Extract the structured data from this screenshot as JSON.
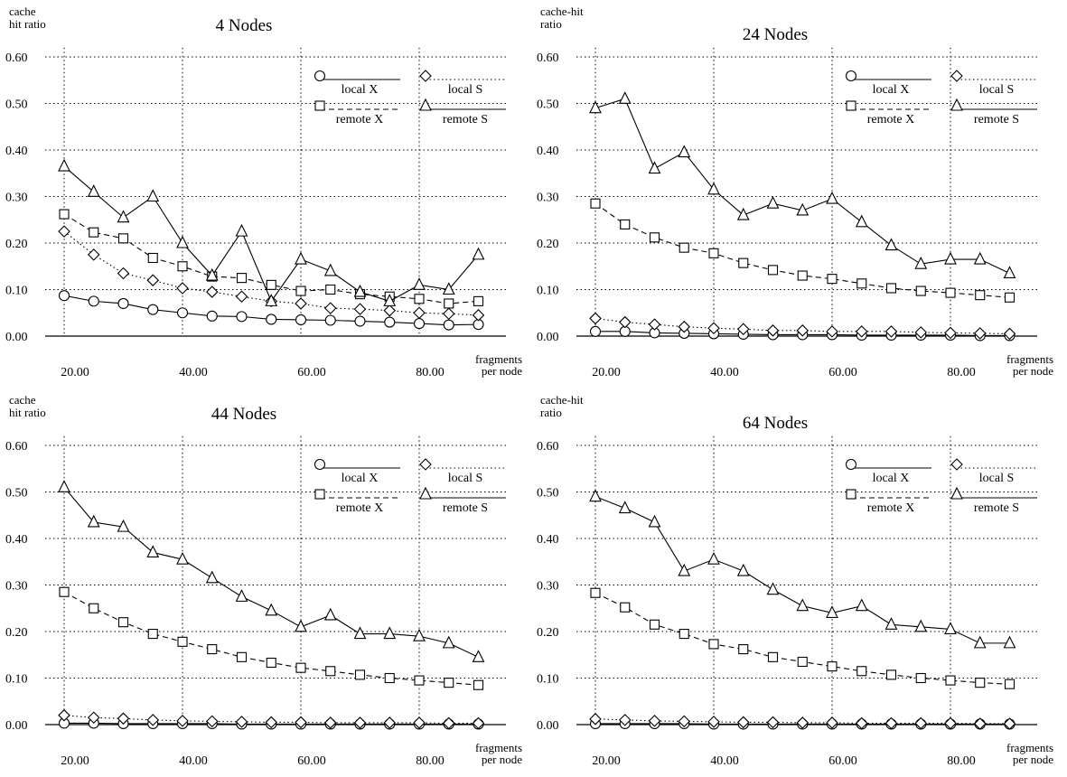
{
  "x_ticks": [
    "20.00",
    "40.00",
    "60.00",
    "80.00"
  ],
  "y_ticks": [
    "0.00",
    "0.10",
    "0.20",
    "0.30",
    "0.40",
    "0.50",
    "0.60"
  ],
  "legend": [
    "local X",
    "local S",
    "remote X",
    "remote S"
  ],
  "chart_data": [
    {
      "type": "line",
      "title": "4 Nodes",
      "ylabel": "cache hit ratio",
      "xlabel": "fragments per node",
      "ylim": [
        0,
        0.6
      ],
      "grid": true,
      "legend_position": "top-right",
      "x": [
        18,
        23,
        28,
        33,
        38,
        43,
        48,
        53,
        58,
        63,
        68,
        73,
        78,
        83,
        88
      ],
      "series": [
        {
          "name": "local X",
          "marker": "circle",
          "line": "solid",
          "values": [
            0.087,
            0.075,
            0.07,
            0.057,
            0.05,
            0.043,
            0.042,
            0.036,
            0.035,
            0.034,
            0.032,
            0.03,
            0.027,
            0.024,
            0.025
          ]
        },
        {
          "name": "local S",
          "marker": "diamond",
          "line": "dotted",
          "values": [
            0.225,
            0.175,
            0.135,
            0.12,
            0.103,
            0.095,
            0.085,
            0.075,
            0.07,
            0.06,
            0.058,
            0.055,
            0.05,
            0.048,
            0.045
          ]
        },
        {
          "name": "remote X",
          "marker": "square",
          "line": "dashed",
          "values": [
            0.262,
            0.223,
            0.21,
            0.168,
            0.15,
            0.128,
            0.125,
            0.11,
            0.097,
            0.1,
            0.09,
            0.085,
            0.08,
            0.07,
            0.075
          ]
        },
        {
          "name": "remote S",
          "marker": "triangle",
          "line": "solid",
          "values": [
            0.365,
            0.31,
            0.255,
            0.3,
            0.2,
            0.13,
            0.225,
            0.075,
            0.165,
            0.14,
            0.095,
            0.075,
            0.11,
            0.1,
            0.175
          ]
        }
      ]
    },
    {
      "type": "line",
      "title": "24 Nodes",
      "ylabel": "cache-hit ratio",
      "xlabel": "fragments per node",
      "ylim": [
        0,
        0.6
      ],
      "grid": true,
      "legend_position": "top-right",
      "x": [
        18,
        23,
        28,
        33,
        38,
        43,
        48,
        53,
        58,
        63,
        68,
        73,
        78,
        83,
        88
      ],
      "series": [
        {
          "name": "local X",
          "marker": "circle",
          "line": "solid",
          "values": [
            0.01,
            0.01,
            0.007,
            0.006,
            0.005,
            0.004,
            0.003,
            0.003,
            0.003,
            0.002,
            0.002,
            0.002,
            0.002,
            0.001,
            0.001
          ]
        },
        {
          "name": "local S",
          "marker": "diamond",
          "line": "dotted",
          "values": [
            0.038,
            0.03,
            0.025,
            0.02,
            0.017,
            0.015,
            0.012,
            0.012,
            0.01,
            0.01,
            0.01,
            0.008,
            0.007,
            0.006,
            0.005
          ]
        },
        {
          "name": "remote X",
          "marker": "square",
          "line": "dashed",
          "values": [
            0.285,
            0.24,
            0.212,
            0.19,
            0.178,
            0.157,
            0.142,
            0.13,
            0.123,
            0.113,
            0.103,
            0.097,
            0.093,
            0.088,
            0.083
          ]
        },
        {
          "name": "remote S",
          "marker": "triangle",
          "line": "solid",
          "values": [
            0.49,
            0.51,
            0.36,
            0.395,
            0.315,
            0.26,
            0.285,
            0.27,
            0.295,
            0.245,
            0.195,
            0.155,
            0.165,
            0.165,
            0.135
          ]
        }
      ]
    },
    {
      "type": "line",
      "title": "44 Nodes",
      "ylabel": "cache hit ratio",
      "xlabel": "fragments per node",
      "ylim": [
        0,
        0.6
      ],
      "grid": true,
      "legend_position": "top-right",
      "x": [
        18,
        23,
        28,
        33,
        38,
        43,
        48,
        53,
        58,
        63,
        68,
        73,
        78,
        83,
        88
      ],
      "series": [
        {
          "name": "local X",
          "marker": "circle",
          "line": "solid",
          "values": [
            0.003,
            0.003,
            0.002,
            0.002,
            0.002,
            0.002,
            0.001,
            0.001,
            0.001,
            0.001,
            0.001,
            0.001,
            0.001,
            0.001,
            0.001
          ]
        },
        {
          "name": "local S",
          "marker": "diamond",
          "line": "dotted",
          "values": [
            0.02,
            0.015,
            0.013,
            0.01,
            0.008,
            0.007,
            0.006,
            0.005,
            0.005,
            0.004,
            0.004,
            0.004,
            0.004,
            0.003,
            0.003
          ]
        },
        {
          "name": "remote X",
          "marker": "square",
          "line": "dashed",
          "values": [
            0.285,
            0.25,
            0.22,
            0.195,
            0.178,
            0.162,
            0.145,
            0.133,
            0.122,
            0.115,
            0.107,
            0.1,
            0.095,
            0.09,
            0.085
          ]
        },
        {
          "name": "remote S",
          "marker": "triangle",
          "line": "solid",
          "values": [
            0.51,
            0.435,
            0.425,
            0.37,
            0.355,
            0.315,
            0.275,
            0.245,
            0.21,
            0.235,
            0.195,
            0.195,
            0.19,
            0.175,
            0.145
          ]
        }
      ]
    },
    {
      "type": "line",
      "title": "64 Nodes",
      "ylabel": "cache-hit ratio",
      "xlabel": "fragments per node",
      "ylim": [
        0,
        0.6
      ],
      "grid": true,
      "legend_position": "top-right",
      "x": [
        18,
        23,
        28,
        33,
        38,
        43,
        48,
        53,
        58,
        63,
        68,
        73,
        78,
        83,
        88
      ],
      "series": [
        {
          "name": "local X",
          "marker": "circle",
          "line": "solid",
          "values": [
            0.002,
            0.002,
            0.002,
            0.002,
            0.001,
            0.001,
            0.001,
            0.001,
            0.001,
            0.001,
            0.001,
            0.001,
            0.001,
            0.001,
            0.001
          ]
        },
        {
          "name": "local S",
          "marker": "diamond",
          "line": "dotted",
          "values": [
            0.012,
            0.01,
            0.008,
            0.007,
            0.006,
            0.005,
            0.005,
            0.004,
            0.004,
            0.003,
            0.003,
            0.003,
            0.003,
            0.002,
            0.002
          ]
        },
        {
          "name": "remote X",
          "marker": "square",
          "line": "dashed",
          "values": [
            0.283,
            0.252,
            0.215,
            0.195,
            0.173,
            0.162,
            0.145,
            0.135,
            0.125,
            0.115,
            0.107,
            0.1,
            0.095,
            0.09,
            0.087
          ]
        },
        {
          "name": "remote S",
          "marker": "triangle",
          "line": "solid",
          "values": [
            0.49,
            0.465,
            0.435,
            0.33,
            0.355,
            0.33,
            0.29,
            0.255,
            0.24,
            0.255,
            0.215,
            0.21,
            0.205,
            0.175,
            0.175
          ]
        }
      ]
    }
  ]
}
